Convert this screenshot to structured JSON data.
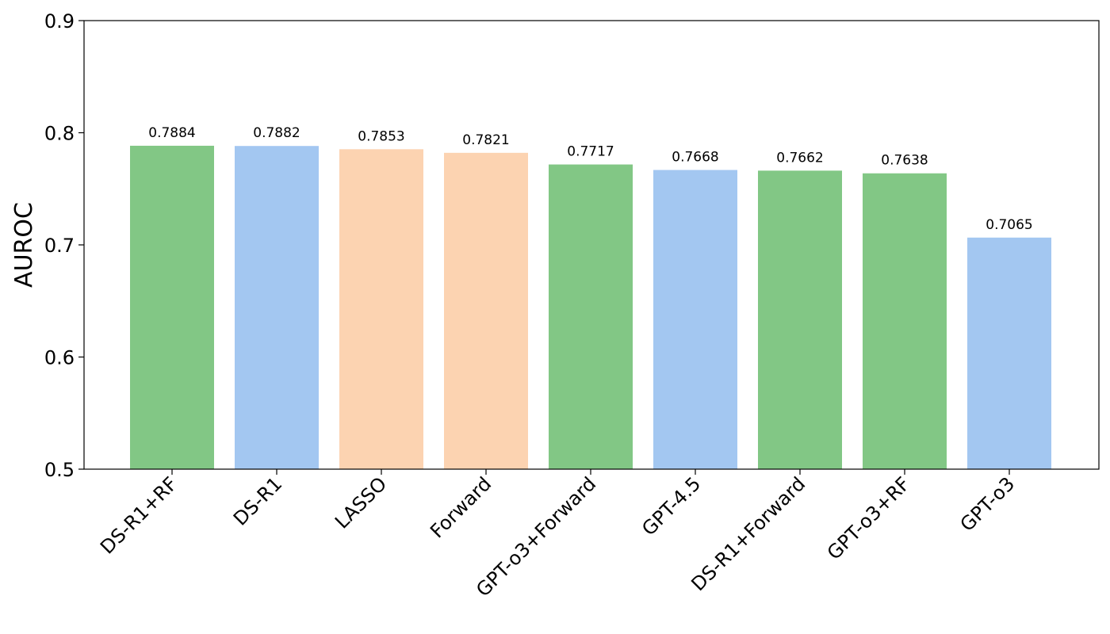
{
  "chart_data": {
    "type": "bar",
    "title": "",
    "xlabel": "",
    "ylabel": "AUROC",
    "ylim": [
      0.5,
      0.9
    ],
    "yticks": [
      "0.5",
      "0.6",
      "0.7",
      "0.8",
      "0.9"
    ],
    "grid": false,
    "categories": [
      "DS-R1+RF",
      "DS-R1",
      "LASSO",
      "Forward",
      "GPT-o3+Forward",
      "GPT-4.5",
      "DS-R1+Forward",
      "GPT-o3+RF",
      "GPT-o3"
    ],
    "values": [
      0.7884,
      0.7882,
      0.7853,
      0.7821,
      0.7717,
      0.7668,
      0.7662,
      0.7638,
      0.7065
    ],
    "value_labels": [
      "0.7884",
      "0.7882",
      "0.7853",
      "0.7821",
      "0.7717",
      "0.7668",
      "0.7662",
      "0.7638",
      "0.7065"
    ],
    "bar_colors": [
      "#82c785",
      "#a3c7f1",
      "#fcd3b1",
      "#fcd3b1",
      "#82c785",
      "#a3c7f1",
      "#82c785",
      "#82c785",
      "#a3c7f1"
    ]
  }
}
